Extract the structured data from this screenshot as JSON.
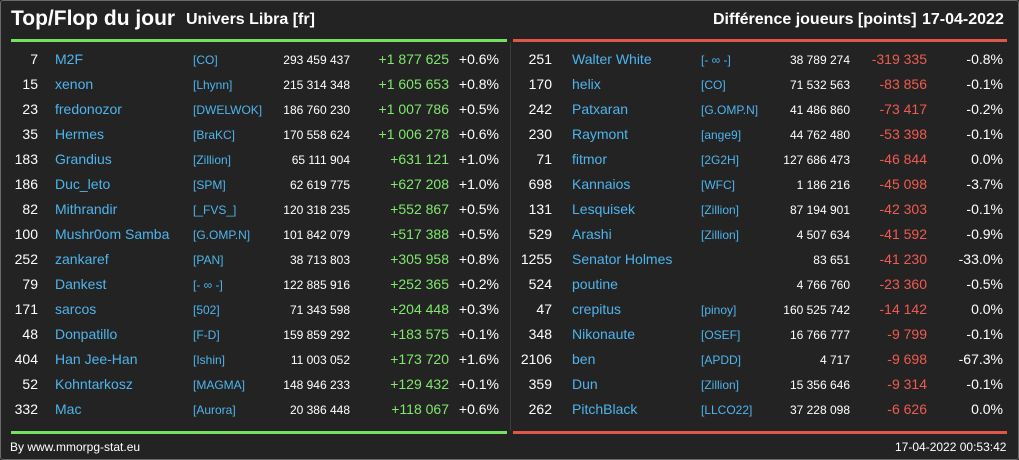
{
  "header": {
    "title": "Top/Flop du jour",
    "universe": "Univers Libra [fr]",
    "metric": "Différence joueurs [points]",
    "date": "17-04-2022"
  },
  "colors": {
    "link": "#4fb4ec",
    "gain": "#7fe86d",
    "loss": "#f05a50",
    "top_bar": "#76e060",
    "flop_bar": "#e0574a"
  },
  "top": [
    {
      "rank": "7",
      "name": "M2F",
      "guild": "[CO]",
      "score": "293 459 437",
      "diff": "+1 877 625",
      "pct": "+0.6%"
    },
    {
      "rank": "15",
      "name": "xenon",
      "guild": "[Lhynn]",
      "score": "215 314 348",
      "diff": "+1 605 653",
      "pct": "+0.8%"
    },
    {
      "rank": "23",
      "name": "fredonozor",
      "guild": "[DWELWOK]",
      "score": "186 760 230",
      "diff": "+1 007 786",
      "pct": "+0.5%"
    },
    {
      "rank": "35",
      "name": "Hermes",
      "guild": "[BraKC]",
      "score": "170 558 624",
      "diff": "+1 006 278",
      "pct": "+0.6%"
    },
    {
      "rank": "183",
      "name": "Grandius",
      "guild": "[Zillion]",
      "score": "65 111 904",
      "diff": "+631 121",
      "pct": "+1.0%"
    },
    {
      "rank": "186",
      "name": "Duc_leto",
      "guild": "[SPM]",
      "score": "62 619 775",
      "diff": "+627 208",
      "pct": "+1.0%"
    },
    {
      "rank": "82",
      "name": "Mithrandir",
      "guild": "[_FVS_]",
      "score": "120 318 235",
      "diff": "+552 867",
      "pct": "+0.5%"
    },
    {
      "rank": "100",
      "name": "Mushr0om Samba",
      "guild": "[G.OMP.N]",
      "score": "101 842 079",
      "diff": "+517 388",
      "pct": "+0.5%"
    },
    {
      "rank": "252",
      "name": "zankaref",
      "guild": "[PAN]",
      "score": "38 713 803",
      "diff": "+305 958",
      "pct": "+0.8%"
    },
    {
      "rank": "79",
      "name": "Dankest",
      "guild": "[- ∞ -]",
      "score": "122 885 916",
      "diff": "+252 365",
      "pct": "+0.2%"
    },
    {
      "rank": "171",
      "name": "sarcos",
      "guild": "[502]",
      "score": "71 343 598",
      "diff": "+204 448",
      "pct": "+0.3%"
    },
    {
      "rank": "48",
      "name": "Donpatillo",
      "guild": "[F-D]",
      "score": "159 859 292",
      "diff": "+183 575",
      "pct": "+0.1%"
    },
    {
      "rank": "404",
      "name": "Han Jee-Han",
      "guild": "[Ishin]",
      "score": "11 003 052",
      "diff": "+173 720",
      "pct": "+1.6%"
    },
    {
      "rank": "52",
      "name": "Kohntarkosz",
      "guild": "[MAGMA]",
      "score": "148 946 233",
      "diff": "+129 432",
      "pct": "+0.1%"
    },
    {
      "rank": "332",
      "name": "Mac",
      "guild": "[Aurora]",
      "score": "20 386 448",
      "diff": "+118 067",
      "pct": "+0.6%"
    }
  ],
  "flop": [
    {
      "rank": "251",
      "name": "Walter White",
      "guild": "[- ∞ -]",
      "score": "38 789 274",
      "diff": "-319 335",
      "pct": "-0.8%"
    },
    {
      "rank": "170",
      "name": "helix",
      "guild": "[CO]",
      "score": "71 532 563",
      "diff": "-83 856",
      "pct": "-0.1%"
    },
    {
      "rank": "242",
      "name": "Patxaran",
      "guild": "[G.OMP.N]",
      "score": "41 486 860",
      "diff": "-73 417",
      "pct": "-0.2%"
    },
    {
      "rank": "230",
      "name": "Raymont",
      "guild": "[ange9]",
      "score": "44 762 480",
      "diff": "-53 398",
      "pct": "-0.1%"
    },
    {
      "rank": "71",
      "name": "fitmor",
      "guild": "[2G2H]",
      "score": "127 686 473",
      "diff": "-46 844",
      "pct": "0.0%"
    },
    {
      "rank": "698",
      "name": "Kannaios",
      "guild": "[WFC]",
      "score": "1 186 216",
      "diff": "-45 098",
      "pct": "-3.7%"
    },
    {
      "rank": "131",
      "name": "Lesquisek",
      "guild": "[Zillion]",
      "score": "87 194 901",
      "diff": "-42 303",
      "pct": "-0.1%"
    },
    {
      "rank": "529",
      "name": "Arashi",
      "guild": "[Zillion]",
      "score": "4 507 634",
      "diff": "-41 592",
      "pct": "-0.9%"
    },
    {
      "rank": "1255",
      "name": "Senator Holmes",
      "guild": "",
      "score": "83 651",
      "diff": "-41 230",
      "pct": "-33.0%"
    },
    {
      "rank": "524",
      "name": "poutine",
      "guild": "",
      "score": "4 766 760",
      "diff": "-23 360",
      "pct": "-0.5%"
    },
    {
      "rank": "47",
      "name": "crepitus",
      "guild": "[pinoy]",
      "score": "160 525 742",
      "diff": "-14 142",
      "pct": "0.0%"
    },
    {
      "rank": "348",
      "name": "Nikonaute",
      "guild": "[OSEF]",
      "score": "16 766 777",
      "diff": "-9 799",
      "pct": "-0.1%"
    },
    {
      "rank": "2106",
      "name": "ben",
      "guild": "[APDD]",
      "score": "4 717",
      "diff": "-9 698",
      "pct": "-67.3%"
    },
    {
      "rank": "359",
      "name": "Dun",
      "guild": "[Zillion]",
      "score": "15 356 646",
      "diff": "-9 314",
      "pct": "-0.1%"
    },
    {
      "rank": "262",
      "name": "PitchBlack",
      "guild": "[LLCO22]",
      "score": "37 228 098",
      "diff": "-6 626",
      "pct": "0.0%"
    }
  ],
  "footer": {
    "credit": "By www.mmorpg-stat.eu",
    "timestamp": "17-04-2022 00:53:42"
  }
}
